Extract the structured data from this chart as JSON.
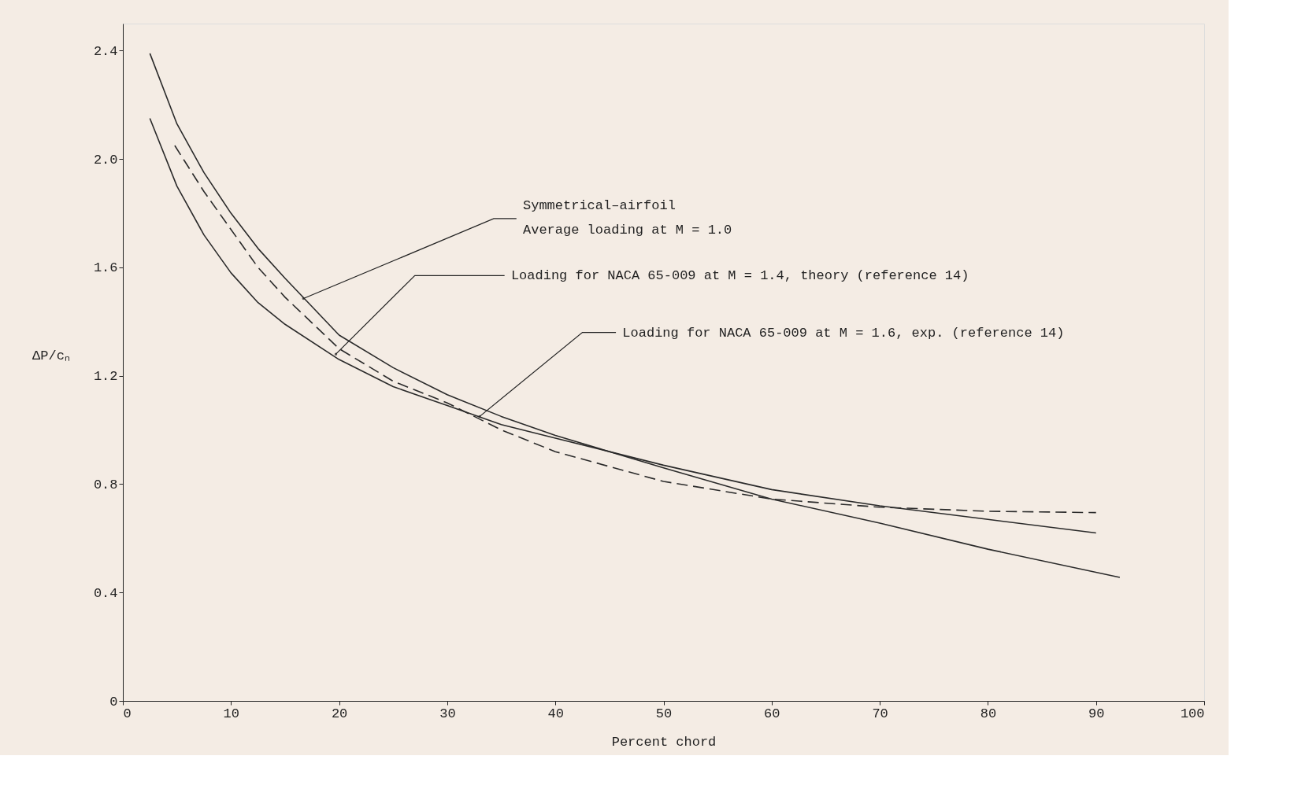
{
  "chart_data": {
    "type": "line",
    "xlabel": "Percent chord",
    "ylabel": "ΔP/cₙ",
    "xlim": [
      0,
      100
    ],
    "xticks": [
      0,
      10,
      20,
      30,
      40,
      50,
      60,
      70,
      80,
      90,
      100
    ],
    "ylim": [
      0,
      2.5
    ],
    "yticks": [
      0,
      0.4,
      0.8,
      1.2,
      1.6,
      {
        "value": 2,
        "label": "2.0"
      },
      2.4
    ],
    "grid": false,
    "marker": "none",
    "series": [
      {
        "color": "#2a2a2a",
        "line_style": "solid",
        "x": [
          2.5,
          5,
          7.5,
          10,
          12.5,
          15,
          20,
          25,
          30,
          35,
          40,
          50,
          60,
          70,
          80,
          92.2
        ],
        "values": [
          2.39,
          2.13,
          1.95,
          1.8,
          1.67,
          1.56,
          1.35,
          1.23,
          1.13,
          1.05,
          0.98,
          0.86,
          0.745,
          0.656,
          0.56,
          0.456
        ]
      },
      {
        "color": "#2a2a2a",
        "line_style": "dashed",
        "x": [
          4.8,
          7.5,
          10,
          12.5,
          15,
          20,
          25,
          30,
          35,
          40,
          50,
          60,
          70,
          80,
          90
        ],
        "values": [
          2.05,
          1.88,
          1.74,
          1.6,
          1.49,
          1.3,
          1.18,
          1.1,
          1.0,
          0.92,
          0.81,
          0.745,
          0.715,
          0.7,
          0.695
        ]
      },
      {
        "color": "#2a2a2a",
        "line_style": "solid",
        "x": [
          2.5,
          5,
          7.5,
          10,
          12.5,
          15,
          20,
          25,
          30,
          35,
          40,
          50,
          60,
          70,
          80,
          90
        ],
        "values": [
          2.15,
          1.9,
          1.72,
          1.58,
          1.47,
          1.39,
          1.26,
          1.16,
          1.09,
          1.02,
          0.97,
          0.87,
          0.78,
          0.72,
          0.67,
          0.62
        ]
      }
    ],
    "annotations": [
      {
        "text": "Symmetrical–airfoil\nAverage loading at  M = 1.0",
        "x": 16.7,
        "y": 1.485
      },
      {
        "text": "Loading for NACA 65-009 at  M = 1.4, theory (reference 14)",
        "x": 19.7,
        "y": 1.28
      },
      {
        "text": "Loading for NACA 65-009 at  M = 1.6,  exp. (reference 14)",
        "x": 33.0,
        "y": 1.05
      }
    ]
  }
}
